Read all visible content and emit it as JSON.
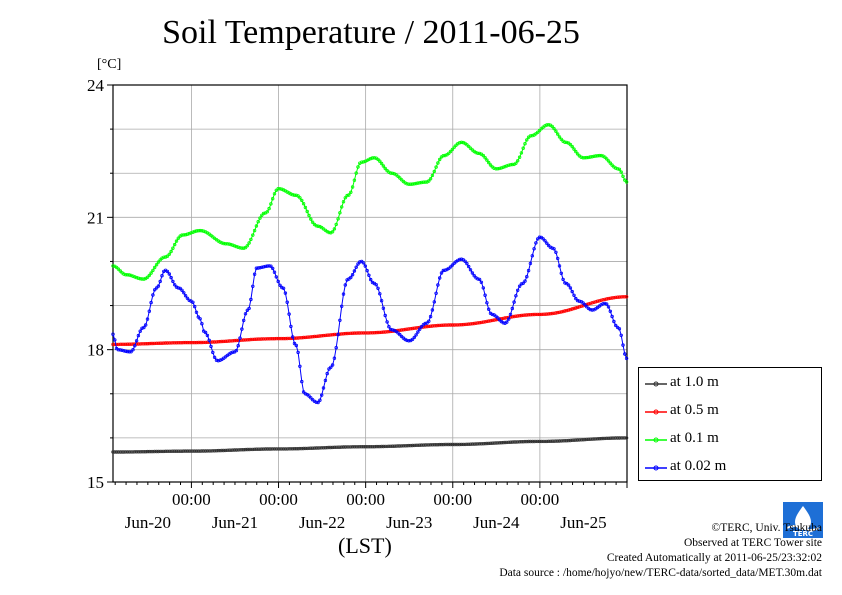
{
  "chart_data": {
    "type": "line",
    "title": "Soil Temperature / 2011-06-25",
    "ylabel": "[°C]",
    "xlabel": "(LST)",
    "ylim": [
      15,
      24
    ],
    "yticks": [
      15,
      18,
      21,
      24
    ],
    "xlim": [
      -0.9,
      5.0
    ],
    "xtick_positions": [
      0,
      1,
      2,
      3,
      4
    ],
    "xtick_labels_time": [
      "00:00",
      "00:00",
      "00:00",
      "00:00",
      "00:00"
    ],
    "date_labels": [
      "Jun-20",
      "Jun-21",
      "Jun-22",
      "Jun-23",
      "Jun-24",
      "Jun-25"
    ],
    "grid": true,
    "legend_position": "lower-right, outside plot",
    "series": [
      {
        "name": "at 1.0 m",
        "color": "#333333",
        "x": [
          -0.9,
          0,
          1,
          2,
          3,
          4,
          5
        ],
        "y": [
          15.68,
          15.7,
          15.75,
          15.8,
          15.85,
          15.92,
          16.0
        ]
      },
      {
        "name": "at 0.5 m",
        "color": "#ff0000",
        "x": [
          -0.9,
          0,
          1,
          2,
          3,
          4,
          5
        ],
        "y": [
          18.12,
          18.16,
          18.25,
          18.38,
          18.56,
          18.8,
          19.2
        ]
      },
      {
        "name": "at 0.1 m",
        "color": "#00ff00",
        "x": [
          -0.9,
          -0.75,
          -0.55,
          -0.3,
          -0.1,
          0.1,
          0.4,
          0.6,
          0.85,
          1.0,
          1.2,
          1.45,
          1.6,
          1.8,
          1.95,
          2.1,
          2.3,
          2.5,
          2.7,
          2.9,
          3.1,
          3.3,
          3.5,
          3.7,
          3.9,
          4.1,
          4.3,
          4.5,
          4.7,
          4.9,
          5.0
        ],
        "y": [
          19.9,
          19.7,
          19.6,
          20.1,
          20.6,
          20.7,
          20.4,
          20.3,
          21.1,
          21.65,
          21.5,
          20.8,
          20.65,
          21.5,
          22.25,
          22.35,
          22.0,
          21.75,
          21.8,
          22.4,
          22.7,
          22.45,
          22.1,
          22.2,
          22.85,
          23.1,
          22.7,
          22.35,
          22.4,
          22.1,
          21.8
        ]
      },
      {
        "name": "at 0.02 m",
        "color": "#0000ff",
        "x": [
          -0.9,
          -0.85,
          -0.7,
          -0.55,
          -0.4,
          -0.3,
          -0.15,
          0,
          0.1,
          0.15,
          0.3,
          0.5,
          0.65,
          0.75,
          0.9,
          1.05,
          1.2,
          1.3,
          1.45,
          1.6,
          1.8,
          1.95,
          2.1,
          2.3,
          2.5,
          2.7,
          2.9,
          3.1,
          3.3,
          3.45,
          3.6,
          3.8,
          4.0,
          4.15,
          4.3,
          4.45,
          4.6,
          4.75,
          4.9,
          5.0
        ],
        "y": [
          18.35,
          18.0,
          17.95,
          18.5,
          19.4,
          19.8,
          19.4,
          19.1,
          18.7,
          18.4,
          17.75,
          17.95,
          18.9,
          19.85,
          19.9,
          19.4,
          18.1,
          17.0,
          16.8,
          17.6,
          19.6,
          20.0,
          19.5,
          18.45,
          18.2,
          18.6,
          19.8,
          20.05,
          19.6,
          18.8,
          18.6,
          19.5,
          20.55,
          20.3,
          19.5,
          19.1,
          18.9,
          19.05,
          18.5,
          17.8
        ]
      }
    ]
  },
  "footer": {
    "copyright": "©TERC, Univ. Tsukuba",
    "site": "Observed at TERC Tower site",
    "created": "Created Automatically at 2011-06-25/23:32:02",
    "source": "Data source : /home/hojyo/new/TERC-data/sorted_data/MET.30m.dat"
  },
  "logo": {
    "text": "TERC",
    "color": "#1e6fd6"
  }
}
